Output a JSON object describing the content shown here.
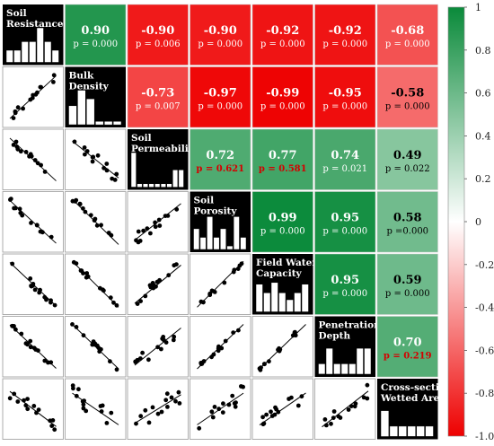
{
  "chart_data": {
    "type": "heatmap",
    "variables": [
      [
        "Soil",
        "Resistance"
      ],
      [
        "Bulk",
        "Density"
      ],
      [
        "Soil",
        "Permeability"
      ],
      [
        "Soil",
        "Porosity"
      ],
      [
        "Field Water",
        "Capacity"
      ],
      [
        "Penetration",
        "Depth"
      ],
      [
        "Cross-sectional",
        "Wetted Area"
      ]
    ],
    "correlations": [
      {
        "row": 0,
        "col": 1,
        "r": "0.90",
        "p": "p = 0.000",
        "significant": true
      },
      {
        "row": 0,
        "col": 2,
        "r": "-0.90",
        "p": "p = 0.006",
        "significant": true
      },
      {
        "row": 0,
        "col": 3,
        "r": "-0.90",
        "p": "p = 0.000",
        "significant": true
      },
      {
        "row": 0,
        "col": 4,
        "r": "-0.92",
        "p": "p = 0.000",
        "significant": true
      },
      {
        "row": 0,
        "col": 5,
        "r": "-0.92",
        "p": "p = 0.000",
        "significant": true
      },
      {
        "row": 0,
        "col": 6,
        "r": "-0.68",
        "p": "p = 0.000",
        "significant": true
      },
      {
        "row": 1,
        "col": 2,
        "r": "-0.73",
        "p": "p = 0.007",
        "significant": true
      },
      {
        "row": 1,
        "col": 3,
        "r": "-0.97",
        "p": "p = 0.000",
        "significant": true
      },
      {
        "row": 1,
        "col": 4,
        "r": "-0.99",
        "p": "p = 0.000",
        "significant": true
      },
      {
        "row": 1,
        "col": 5,
        "r": "-0.95",
        "p": "p = 0.000",
        "significant": true
      },
      {
        "row": 1,
        "col": 6,
        "r": "-0.58",
        "p": "p = 0.000",
        "significant": true
      },
      {
        "row": 2,
        "col": 3,
        "r": "0.72",
        "p": "p = 0.621",
        "significant": false
      },
      {
        "row": 2,
        "col": 4,
        "r": "0.77",
        "p": "p = 0.581",
        "significant": false
      },
      {
        "row": 2,
        "col": 5,
        "r": "0.74",
        "p": "p = 0.021",
        "significant": true
      },
      {
        "row": 2,
        "col": 6,
        "r": "0.49",
        "p": "p = 0.022",
        "significant": true
      },
      {
        "row": 3,
        "col": 4,
        "r": "0.99",
        "p": "p = 0.000",
        "significant": true
      },
      {
        "row": 3,
        "col": 5,
        "r": "0.95",
        "p": "p = 0.000",
        "significant": true
      },
      {
        "row": 3,
        "col": 6,
        "r": "0.58",
        "p": "p =0.000",
        "significant": true
      },
      {
        "row": 4,
        "col": 5,
        "r": "0.95",
        "p": "p = 0.000",
        "significant": true
      },
      {
        "row": 4,
        "col": 6,
        "r": "0.59",
        "p": "p = 0.000",
        "significant": true
      },
      {
        "row": 5,
        "col": 6,
        "r": "0.70",
        "p": "p = 0.219",
        "significant": false
      }
    ],
    "histograms": [
      [
        0.35,
        0.35,
        0.6,
        0.6,
        1.0,
        0.6,
        0.35
      ],
      [
        0.55,
        1.0,
        0.75,
        0.1,
        0.1,
        0.1
      ],
      [
        1.0,
        0.1,
        0.1,
        0.1,
        0.1,
        0.1,
        0.1,
        0.5,
        0.5
      ],
      [
        0.6,
        0.35,
        0.95,
        0.35,
        0.6,
        0.1,
        0.95,
        0.35
      ],
      [
        0.8,
        0.55,
        0.85,
        0.55,
        0.35,
        0.55,
        0.8
      ],
      [
        0.3,
        0.75,
        0.3,
        0.3,
        0.3,
        0.75,
        0.75
      ],
      [
        0.75,
        0.3,
        0.3,
        0.3,
        0.3,
        0.3
      ]
    ],
    "colorbar": {
      "min": -1.0,
      "max": 1.0,
      "ticks": [
        "1",
        "0.8",
        "0.6",
        "0.4",
        "0.2",
        "0",
        "-0.2",
        "-0.4",
        "-0.6",
        "-0.8",
        "-1.0"
      ],
      "colors": {
        "positive": "#0a8a3a",
        "zero": "#ffffff",
        "negative": "#ee0000"
      }
    },
    "significance_color": {
      "nonsignificant_p": "#d40000",
      "significant_p": "#ffffff",
      "r_dark_text": "#000000"
    }
  }
}
